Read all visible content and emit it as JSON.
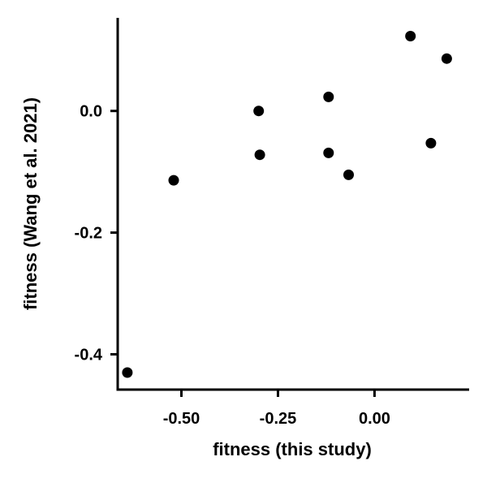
{
  "chart_data": {
    "type": "scatter",
    "title": "",
    "xlabel": "fitness (this study)",
    "ylabel": "fitness (Wang et al. 2021)",
    "xlim": [
      -0.665,
      0.245
    ],
    "ylim": [
      -0.458,
      0.153
    ],
    "x_ticks": [
      -0.5,
      -0.25,
      0.0
    ],
    "x_tick_labels": [
      "-0.50",
      "-0.25",
      "0.00"
    ],
    "y_ticks": [
      0.0,
      -0.2,
      -0.4
    ],
    "y_tick_labels": [
      "0.0",
      "-0.2",
      "-0.4"
    ],
    "grid": false,
    "point_color": "#000000",
    "points": [
      {
        "x": -0.64,
        "y": -0.43
      },
      {
        "x": -0.52,
        "y": -0.114
      },
      {
        "x": -0.3,
        "y": 0.0
      },
      {
        "x": -0.297,
        "y": -0.072
      },
      {
        "x": -0.119,
        "y": 0.023
      },
      {
        "x": -0.119,
        "y": -0.069
      },
      {
        "x": -0.067,
        "y": -0.105
      },
      {
        "x": 0.093,
        "y": 0.123
      },
      {
        "x": 0.146,
        "y": -0.053
      },
      {
        "x": 0.187,
        "y": 0.086
      }
    ]
  }
}
